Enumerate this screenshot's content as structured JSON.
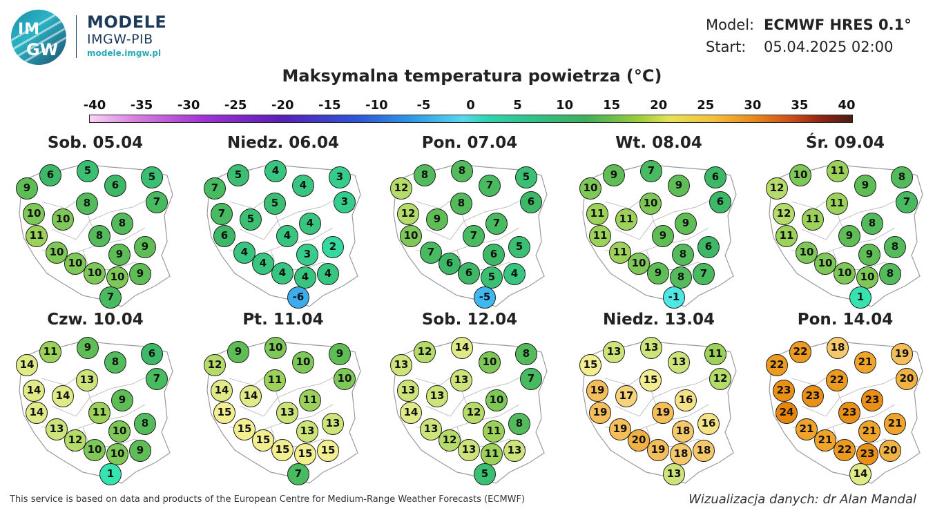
{
  "brand": {
    "title": "MODELE",
    "subtitle": "IMGW-PIB",
    "url": "modele.imgw.pl",
    "logo_text_top": "IM",
    "logo_text_bottom": "GW"
  },
  "meta": {
    "model_label": "Model:",
    "model_value": "ECMWF HRES 0.1°",
    "start_label": "Start:",
    "start_value": "05.04.2025 02:00"
  },
  "title": "Maksymalna temperatura powietrza (°C)",
  "scale": {
    "ticks": [
      "-40",
      "-35",
      "-30",
      "-25",
      "-20",
      "-15",
      "-10",
      "-5",
      "0",
      "5",
      "10",
      "15",
      "20",
      "25",
      "30",
      "35",
      "40"
    ]
  },
  "colors": {
    "stops": [
      {
        "v": -40,
        "c": "#f7d4f2"
      },
      {
        "v": -30,
        "c": "#c45ad8"
      },
      {
        "v": -20,
        "c": "#5a1fb8"
      },
      {
        "v": -10,
        "c": "#2f7fe0"
      },
      {
        "v": -5,
        "c": "#3fb8ef"
      },
      {
        "v": -1,
        "c": "#4de8e4"
      },
      {
        "v": 1,
        "c": "#34e3b0"
      },
      {
        "v": 3,
        "c": "#35cc8c"
      },
      {
        "v": 6,
        "c": "#3cb866"
      },
      {
        "v": 9,
        "c": "#5fbd55"
      },
      {
        "v": 11,
        "c": "#9dd25a"
      },
      {
        "v": 13,
        "c": "#cde47a"
      },
      {
        "v": 15,
        "c": "#f3ef91"
      },
      {
        "v": 17,
        "c": "#f6d27a"
      },
      {
        "v": 19,
        "c": "#f4bf5a"
      },
      {
        "v": 21,
        "c": "#f0a42a"
      },
      {
        "v": 24,
        "c": "#e8860c"
      },
      {
        "v": 30,
        "c": "#c8401a"
      },
      {
        "v": 40,
        "c": "#4a1e12"
      }
    ]
  },
  "days": [
    {
      "label": "Sob. 05.04",
      "values": [
        9,
        6,
        5,
        6,
        5,
        7,
        10,
        10,
        8,
        8,
        11,
        8,
        9,
        9,
        10,
        10,
        10,
        10,
        9,
        7
      ]
    },
    {
      "label": "Niedz. 06.04",
      "values": [
        7,
        5,
        4,
        4,
        3,
        3,
        7,
        5,
        5,
        4,
        6,
        4,
        3,
        2,
        4,
        4,
        4,
        4,
        4,
        -6
      ]
    },
    {
      "label": "Pon. 07.04",
      "values": [
        12,
        8,
        8,
        7,
        5,
        6,
        12,
        9,
        8,
        7,
        10,
        7,
        6,
        5,
        7,
        6,
        6,
        5,
        4,
        -5
      ]
    },
    {
      "label": "Wt. 08.04",
      "values": [
        10,
        9,
        7,
        9,
        6,
        6,
        11,
        11,
        10,
        9,
        11,
        9,
        8,
        6,
        11,
        10,
        9,
        8,
        7,
        -1
      ]
    },
    {
      "label": "Śr. 09.04",
      "values": [
        12,
        10,
        11,
        9,
        8,
        7,
        12,
        11,
        11,
        8,
        11,
        9,
        9,
        8,
        10,
        10,
        10,
        10,
        8,
        1
      ]
    },
    {
      "label": "Czw. 10.04",
      "values": [
        14,
        11,
        9,
        8,
        6,
        7,
        14,
        14,
        13,
        9,
        14,
        11,
        10,
        8,
        13,
        12,
        10,
        10,
        9,
        1
      ]
    },
    {
      "label": "Pt. 11.04",
      "values": [
        12,
        9,
        10,
        10,
        9,
        10,
        14,
        14,
        11,
        11,
        15,
        13,
        13,
        13,
        15,
        15,
        15,
        15,
        15,
        7
      ]
    },
    {
      "label": "Sob. 12.04",
      "values": [
        13,
        12,
        14,
        10,
        8,
        7,
        13,
        13,
        13,
        10,
        14,
        12,
        11,
        8,
        13,
        12,
        13,
        11,
        13,
        5
      ]
    },
    {
      "label": "Niedz. 13.04",
      "values": [
        15,
        13,
        13,
        13,
        11,
        12,
        19,
        17,
        15,
        16,
        19,
        19,
        18,
        16,
        19,
        20,
        19,
        18,
        18,
        13
      ]
    },
    {
      "label": "Pon. 14.04",
      "values": [
        22,
        22,
        18,
        21,
        19,
        20,
        23,
        23,
        22,
        23,
        24,
        23,
        21,
        21,
        21,
        21,
        22,
        23,
        20,
        14
      ]
    }
  ],
  "footer": {
    "credit": "This service is based on data and products of the European Centre for Medium-Range Weather Forecasts (ECMWF)",
    "author": "Wizualizacja danych: dr Alan Mandal"
  }
}
